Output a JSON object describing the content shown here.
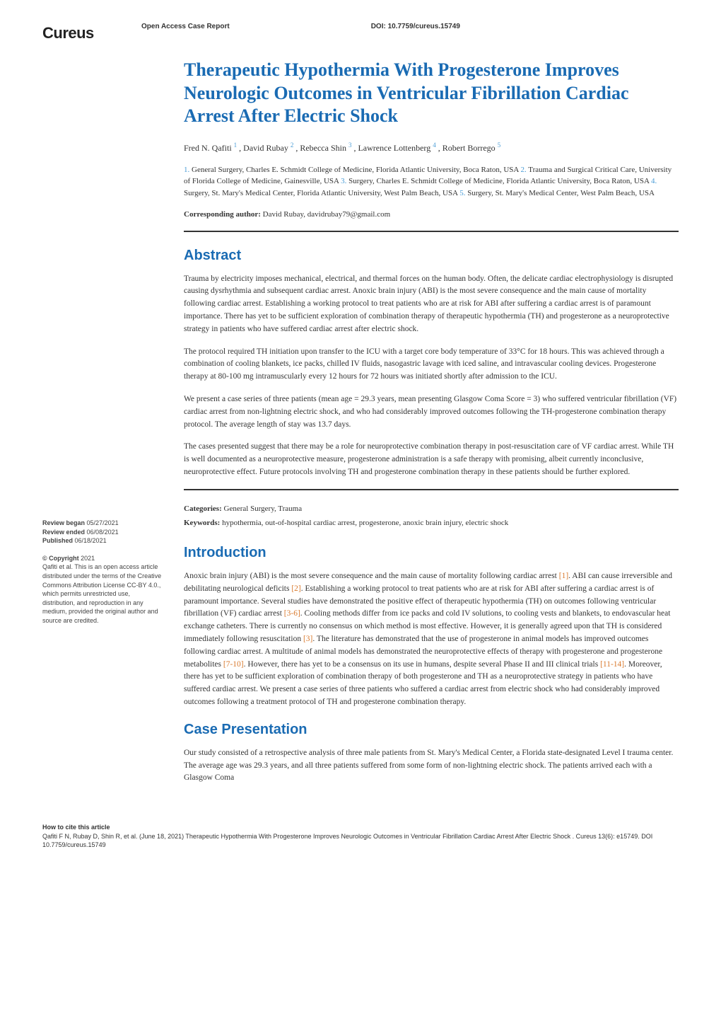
{
  "header": {
    "logo": "Cureus",
    "access_label": "Open Access Case Report",
    "doi_label": "DOI:",
    "doi_value": "10.7759/cureus.15749"
  },
  "title": "Therapeutic Hypothermia With Progesterone Improves Neurologic Outcomes in Ventricular Fibrillation Cardiac Arrest After Electric Shock",
  "authors": [
    {
      "name": "Fred N. Qafiti",
      "sup": "1"
    },
    {
      "name": "David Rubay",
      "sup": "2"
    },
    {
      "name": "Rebecca Shin",
      "sup": "3"
    },
    {
      "name": "Lawrence Lottenberg",
      "sup": "4"
    },
    {
      "name": "Robert Borrego",
      "sup": "5"
    }
  ],
  "affiliations": [
    {
      "num": "1.",
      "text": "General Surgery, Charles E. Schmidt College of Medicine, Florida Atlantic University, Boca Raton, USA"
    },
    {
      "num": "2.",
      "text": "Trauma and Surgical Critical Care, University of Florida College of Medicine, Gainesville, USA"
    },
    {
      "num": "3.",
      "text": "Surgery, Charles E. Schmidt College of Medicine, Florida Atlantic University, Boca Raton, USA"
    },
    {
      "num": "4.",
      "text": "Surgery, St. Mary's Medical Center, Florida Atlantic University, West Palm Beach, USA"
    },
    {
      "num": "5.",
      "text": "Surgery, St. Mary's Medical Center, West Palm Beach, USA"
    }
  ],
  "corresponding": {
    "label": "Corresponding author:",
    "text": "David Rubay, davidrubay79@gmail.com"
  },
  "abstract": {
    "heading": "Abstract",
    "paragraphs": [
      "Trauma by electricity imposes mechanical, electrical, and thermal forces on the human body. Often, the delicate cardiac electrophysiology is disrupted causing dysrhythmia and subsequent cardiac arrest. Anoxic brain injury (ABI) is the most severe consequence and the main cause of mortality following cardiac arrest. Establishing a working protocol to treat patients who are at risk for ABI after suffering a cardiac arrest is of paramount importance. There has yet to be sufficient exploration of combination therapy of therapeutic hypothermia (TH) and progesterone as a neuroprotective strategy in patients who have suffered cardiac arrest after electric shock.",
      "The protocol required TH initiation upon transfer to the ICU with a target core body temperature of 33°C for 18 hours. This was achieved through a combination of cooling blankets, ice packs, chilled IV fluids, nasogastric lavage with iced saline, and intravascular cooling devices. Progesterone therapy at 80-100 mg intramuscularly every 12 hours for 72 hours was initiated shortly after admission to the ICU.",
      "We present a case series of three patients (mean age = 29.3 years, mean presenting Glasgow Coma Score = 3) who suffered ventricular fibrillation (VF) cardiac arrest from non-lightning electric shock, and who had considerably improved outcomes following the TH-progesterone combination therapy protocol. The average length of stay was 13.7 days.",
      "The cases presented suggest that there may be a role for neuroprotective combination therapy in post-resuscitation care of VF cardiac arrest. While TH is well documented as a neuroprotective measure, progesterone administration is a safe therapy with promising, albeit currently inconclusive, neuroprotective effect. Future protocols involving TH and progesterone combination therapy in these patients should be further explored."
    ]
  },
  "categories": {
    "label": "Categories:",
    "text": "General Surgery, Trauma"
  },
  "keywords": {
    "label": "Keywords:",
    "text": "hypothermia, out-of-hospital cardiac arrest, progesterone, anoxic brain injury, electric shock"
  },
  "introduction": {
    "heading": "Introduction",
    "text_parts": [
      "Anoxic brain injury (ABI) is the most severe consequence and the main cause of mortality following cardiac arrest ",
      ". ABI can cause irreversible and debilitating neurological deficits  ",
      ". Establishing a working protocol to treat patients who are at risk for ABI after suffering a cardiac arrest is of paramount importance. Several studies have demonstrated the positive effect of therapeutic hypothermia (TH) on outcomes following ventricular fibrillation (VF) cardiac arrest ",
      ". Cooling methods differ from ice packs and cold IV solutions, to cooling vests and blankets, to endovascular heat exchange catheters. There is currently no consensus on which method is most effective. However, it is generally agreed upon that TH is considered immediately following resuscitation ",
      ". The literature has demonstrated that the use of progesterone in animal models has improved outcomes following cardiac arrest. A multitude of animal models has demonstrated the neuroprotective effects of therapy with progesterone and progesterone metabolites ",
      ". However, there has yet to be a consensus on its use in humans, despite several Phase II and III clinical trials ",
      ". Moreover, there has yet to be sufficient exploration of combination therapy of both progesterone and TH as a neuroprotective strategy in patients who have suffered cardiac arrest. We present a case series of three patients who suffered a cardiac arrest from electric shock who had considerably improved outcomes following a treatment protocol of TH and progesterone combination therapy."
    ],
    "refs": [
      "[1]",
      "[2]",
      "[3-6]",
      "[3]",
      "[7-10]",
      "[11-14]"
    ]
  },
  "case_presentation": {
    "heading": "Case Presentation",
    "paragraph": "Our study consisted of a retrospective analysis of three male patients from St. Mary's Medical Center, a Florida state-designated Level I trauma center. The average age was 29.3 years, and all three patients suffered from some form of non-lightning electric shock. The patients arrived each with a Glasgow Coma"
  },
  "sidebar": {
    "review_began_label": "Review began",
    "review_began": "05/27/2021",
    "review_ended_label": "Review ended",
    "review_ended": "06/08/2021",
    "published_label": "Published",
    "published": "06/18/2021",
    "copyright_label": "© Copyright",
    "copyright_year": "2021",
    "copyright_text": "Qafiti et al. This is an open access article distributed under the terms of the Creative Commons Attribution License CC-BY 4.0., which permits unrestricted use, distribution, and reproduction in any medium, provided the original author and source are credited."
  },
  "footer": {
    "cite_label": "How to cite this article",
    "cite_text": "Qafiti F N, Rubay D, Shin R, et al. (June 18, 2021) Therapeutic Hypothermia With Progesterone Improves Neurologic Outcomes in Ventricular Fibrillation Cardiac Arrest After Electric Shock . Cureus 13(6): e15749. DOI 10.7759/cureus.15749"
  },
  "colors": {
    "heading_blue": "#1a6bb3",
    "sup_blue": "#4a9cd6",
    "ref_orange": "#d97a2e",
    "text": "#333333",
    "rule": "#333333",
    "background": "#ffffff"
  },
  "typography": {
    "title_fontsize": 26,
    "section_fontsize": 20,
    "body_fontsize": 11.5,
    "sidebar_fontsize": 9,
    "footer_fontsize": 9
  }
}
